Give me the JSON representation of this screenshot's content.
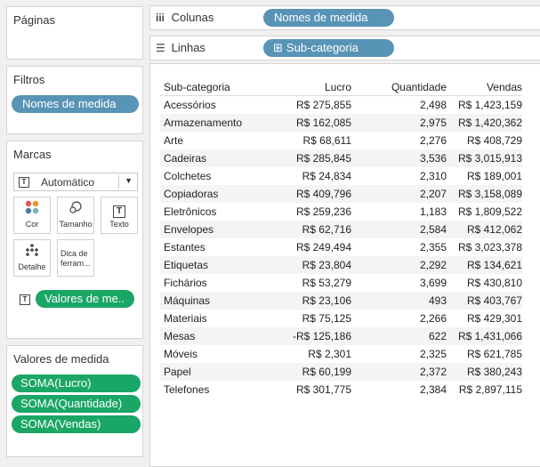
{
  "left_panel": {
    "paginas_title": "Páginas",
    "filtros_title": "Filtros",
    "filtros_pill": "Nomes de medida",
    "marcas_title": "Marcas",
    "marcas_dropdown": "Automático",
    "marcas_buttons": {
      "cor": "Cor",
      "tamanho": "Tamanho",
      "texto": "Texto",
      "detalhe": "Detalhe",
      "dica_line1": "Dica de",
      "dica_line2": "ferram..."
    },
    "marcas_text_pill": "Valores de me..",
    "valores_title": "Valores de medida",
    "valores_pills": [
      "SOMA(Lucro)",
      "SOMA(Quantidade)",
      "SOMA(Vendas)"
    ]
  },
  "shelves": {
    "colunas_label": "Colunas",
    "colunas_pill": "Nomes de medida",
    "linhas_label": "Linhas",
    "linhas_pill": "Sub-categoria",
    "linhas_pill_prefix": "⊞"
  },
  "table": {
    "headers": [
      "Sub-categoria",
      "Lucro",
      "Quantidade",
      "Vendas"
    ],
    "rows": [
      [
        "Acessórios",
        "R$ 275,855",
        "2,498",
        "R$ 1,423,159"
      ],
      [
        "Armazenamento",
        "R$ 162,085",
        "2,975",
        "R$ 1,420,362"
      ],
      [
        "Arte",
        "R$ 68,611",
        "2,276",
        "R$ 408,729"
      ],
      [
        "Cadeiras",
        "R$ 285,845",
        "3,536",
        "R$ 3,015,913"
      ],
      [
        "Colchetes",
        "R$ 24,834",
        "2,310",
        "R$ 189,001"
      ],
      [
        "Copiadoras",
        "R$ 409,796",
        "2,207",
        "R$ 3,158,089"
      ],
      [
        "Eletrônicos",
        "R$ 259,236",
        "1,183",
        "R$ 1,809,522"
      ],
      [
        "Envelopes",
        "R$ 62,716",
        "2,584",
        "R$ 412,062"
      ],
      [
        "Estantes",
        "R$ 249,494",
        "2,355",
        "R$ 3,023,378"
      ],
      [
        "Etiquetas",
        "R$ 23,804",
        "2,292",
        "R$ 134,621"
      ],
      [
        "Fichários",
        "R$ 53,279",
        "3,699",
        "R$ 430,810"
      ],
      [
        "Máquinas",
        "R$ 23,106",
        "493",
        "R$ 403,767"
      ],
      [
        "Materiais",
        "R$ 75,125",
        "2,266",
        "R$ 429,301"
      ],
      [
        "Mesas",
        "-R$ 125,186",
        "622",
        "R$ 1,431,066"
      ],
      [
        "Móveis",
        "R$ 2,301",
        "2,325",
        "R$ 621,785"
      ],
      [
        "Papel",
        "R$ 60,199",
        "2,372",
        "R$ 380,243"
      ],
      [
        "Telefones",
        "R$ 301,775",
        "2,384",
        "R$ 2,897,115"
      ]
    ]
  },
  "colors": {
    "dimension_pill": "#5894b6",
    "measure_pill": "#1aa665"
  }
}
